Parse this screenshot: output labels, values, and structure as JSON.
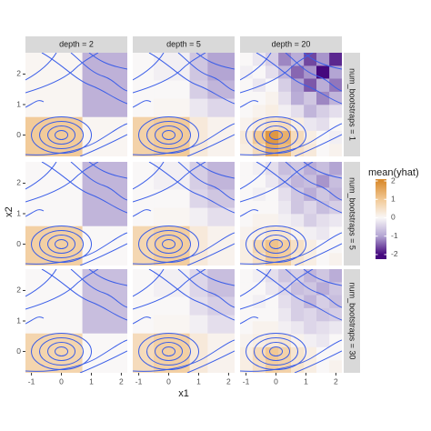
{
  "chart_data": {
    "type": "heatmap",
    "x_label": "x1",
    "y_label": "x2",
    "columns": [
      "depth = 2",
      "depth = 5",
      "depth = 20"
    ],
    "rows": [
      "num_bootstraps = 1",
      "num_bootstraps = 5",
      "num_bootstraps = 30"
    ],
    "xlim": [
      -1.2,
      2.2
    ],
    "ylim": [
      -0.7,
      2.7
    ],
    "xticks": [
      -1,
      0,
      1,
      2
    ],
    "yticks": [
      0,
      1,
      2
    ],
    "legend": {
      "title": "mean(yhat)",
      "lim": [
        -2.25,
        2.1
      ],
      "ticks": [
        2,
        1,
        0,
        -1,
        -2
      ],
      "colors": [
        {
          "value": 2,
          "color": "#d98b2e"
        },
        {
          "value": 1,
          "color": "#f2c995"
        },
        {
          "value": 0,
          "color": "#f9f7f7"
        },
        {
          "value": -1,
          "color": "#b3a5d3"
        },
        {
          "value": -2,
          "color": "#45087e"
        }
      ]
    },
    "contour_color": "#3b5ee8",
    "panels": [
      {
        "x": [
          -1.2,
          0.7,
          2.2
        ],
        "y": [
          -0.7,
          0.6,
          2.7
        ],
        "z": [
          [
            0.95,
            0.05
          ],
          [
            0.05,
            -0.85
          ]
        ]
      },
      {
        "x": [
          -1.2,
          -0.5,
          0.7,
          1.3,
          2.2
        ],
        "y": [
          -0.7,
          0.6,
          1.2,
          1.8,
          2.7
        ],
        "z": [
          [
            0.8,
            0.95,
            0.3,
            0.1
          ],
          [
            0.0,
            0.05,
            -0.2,
            -0.4
          ],
          [
            0.0,
            0.0,
            -0.5,
            -0.8
          ],
          [
            0.0,
            -0.1,
            -0.6,
            -1.0
          ]
        ]
      },
      {
        "x": [
          -1.2,
          -0.78,
          -0.35,
          0.08,
          0.5,
          0.93,
          1.35,
          1.78,
          2.2
        ],
        "y": [
          -0.7,
          -0.28,
          0.15,
          0.58,
          1.0,
          1.43,
          1.86,
          2.28,
          2.7
        ],
        "z": [
          [
            0.2,
            0.6,
            1.5,
            1.2,
            0.5,
            0.3,
            0.0,
            0.1
          ],
          [
            0.3,
            1.0,
            1.8,
            1.4,
            0.6,
            0.2,
            0.0,
            -0.1
          ],
          [
            0.1,
            0.3,
            0.5,
            0.6,
            0.2,
            -0.2,
            -0.3,
            0.0
          ],
          [
            0.0,
            0.1,
            0.2,
            -0.1,
            -0.3,
            -0.8,
            -0.5,
            -0.3
          ],
          [
            0.0,
            0.0,
            0.1,
            -0.3,
            -0.9,
            -0.6,
            -1.2,
            -0.8
          ],
          [
            0.0,
            -0.2,
            0.0,
            -0.5,
            -1.0,
            -1.5,
            -0.9,
            -1.3
          ],
          [
            -0.1,
            0.0,
            -0.3,
            -0.8,
            -1.4,
            -1.1,
            -2.0,
            -1.0
          ],
          [
            0.0,
            -0.2,
            -0.5,
            -1.2,
            -0.9,
            -1.6,
            -1.1,
            -1.8
          ]
        ]
      },
      {
        "x": [
          -1.2,
          0.7,
          2.2
        ],
        "y": [
          -0.7,
          0.6,
          2.7
        ],
        "z": [
          [
            0.85,
            0.0
          ],
          [
            0.0,
            -0.8
          ]
        ]
      },
      {
        "x": [
          -1.2,
          -0.5,
          0.7,
          1.3,
          2.2
        ],
        "y": [
          -0.7,
          0.6,
          1.2,
          1.8,
          2.7
        ],
        "z": [
          [
            0.7,
            0.9,
            0.3,
            0.1
          ],
          [
            0.0,
            0.05,
            -0.1,
            -0.3
          ],
          [
            0.0,
            0.0,
            -0.4,
            -0.6
          ],
          [
            0.0,
            -0.1,
            -0.5,
            -0.8
          ]
        ]
      },
      {
        "x": [
          -1.2,
          -0.78,
          -0.35,
          0.08,
          0.5,
          0.93,
          1.35,
          1.78,
          2.2
        ],
        "y": [
          -0.7,
          -0.28,
          0.15,
          0.58,
          1.0,
          1.43,
          1.86,
          2.28,
          2.7
        ],
        "z": [
          [
            0.2,
            0.5,
            1.0,
            0.9,
            0.4,
            0.2,
            0.0,
            0.1
          ],
          [
            0.2,
            0.7,
            1.1,
            0.9,
            0.5,
            0.2,
            0.0,
            0.0
          ],
          [
            0.1,
            0.2,
            0.4,
            0.4,
            0.1,
            -0.1,
            -0.2,
            0.0
          ],
          [
            0.0,
            0.1,
            0.1,
            -0.1,
            -0.2,
            -0.5,
            -0.3,
            -0.2
          ],
          [
            0.0,
            0.0,
            0.0,
            -0.2,
            -0.6,
            -0.4,
            -0.7,
            -0.5
          ],
          [
            0.0,
            -0.1,
            0.0,
            -0.3,
            -0.6,
            -0.9,
            -0.6,
            -0.8
          ],
          [
            0.0,
            0.0,
            -0.2,
            -0.5,
            -0.8,
            -0.7,
            -1.1,
            -0.7
          ],
          [
            0.0,
            -0.1,
            -0.3,
            -0.7,
            -0.6,
            -0.9,
            -0.7,
            -1.0
          ]
        ]
      },
      {
        "x": [
          -1.2,
          0.7,
          2.2
        ],
        "y": [
          -0.7,
          0.6,
          2.7
        ],
        "z": [
          [
            0.75,
            0.0
          ],
          [
            0.0,
            -0.7
          ]
        ]
      },
      {
        "x": [
          -1.2,
          -0.5,
          0.7,
          1.3,
          2.2
        ],
        "y": [
          -0.7,
          0.6,
          1.2,
          1.8,
          2.7
        ],
        "z": [
          [
            0.6,
            0.85,
            0.3,
            0.1
          ],
          [
            0.0,
            0.05,
            -0.1,
            -0.3
          ],
          [
            0.0,
            0.0,
            -0.3,
            -0.5
          ],
          [
            0.0,
            -0.1,
            -0.4,
            -0.7
          ]
        ]
      },
      {
        "x": [
          -1.2,
          -0.78,
          -0.35,
          0.08,
          0.5,
          0.93,
          1.35,
          1.78,
          2.2
        ],
        "y": [
          -0.7,
          -0.28,
          0.15,
          0.58,
          1.0,
          1.43,
          1.86,
          2.28,
          2.7
        ],
        "z": [
          [
            0.2,
            0.5,
            0.9,
            0.8,
            0.4,
            0.2,
            0.0,
            0.1
          ],
          [
            0.2,
            0.6,
            1.0,
            0.8,
            0.4,
            0.2,
            0.0,
            0.0
          ],
          [
            0.1,
            0.2,
            0.3,
            0.4,
            0.1,
            -0.1,
            -0.2,
            0.0
          ],
          [
            0.0,
            0.1,
            0.1,
            -0.1,
            -0.2,
            -0.4,
            -0.3,
            -0.2
          ],
          [
            0.0,
            0.0,
            0.0,
            -0.2,
            -0.5,
            -0.4,
            -0.6,
            -0.5
          ],
          [
            0.0,
            -0.1,
            0.0,
            -0.3,
            -0.5,
            -0.8,
            -0.5,
            -0.7
          ],
          [
            0.0,
            0.0,
            -0.2,
            -0.4,
            -0.7,
            -0.6,
            -0.9,
            -0.6
          ],
          [
            0.0,
            -0.1,
            -0.3,
            -0.6,
            -0.5,
            -0.8,
            -0.6,
            -0.9
          ]
        ]
      }
    ]
  }
}
